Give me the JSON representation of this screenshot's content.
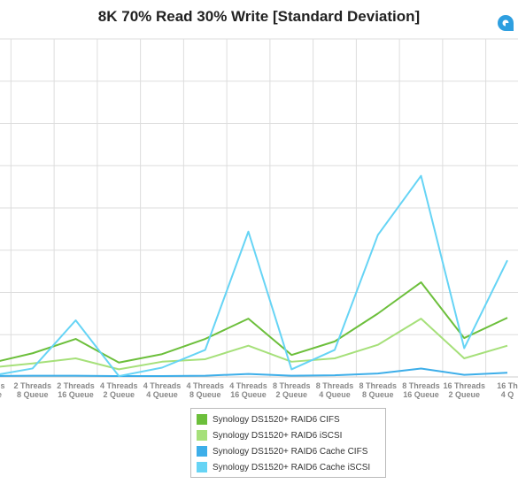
{
  "colors": {
    "cifs": "#6cbf3b",
    "iscsi": "#a6e07a",
    "cache_cifs": "#3daee9",
    "cache_iscsi": "#66d4f5",
    "grid": "#dddddd",
    "logo": "#2e9fe0"
  },
  "chart_data": {
    "type": "line",
    "title": "8K 70% Read 30% Write [Standard Deviation]",
    "xlabel": "",
    "ylabel": "",
    "ylim": [
      0,
      40
    ],
    "yticks": [
      0,
      5,
      10,
      15,
      20,
      25,
      30,
      35,
      40
    ],
    "y_tick_labels_visible": false,
    "grid": true,
    "legend_position": "bottom",
    "categories": [
      [
        "Threads",
        "Queue"
      ],
      [
        "2 Threads",
        "8 Queue"
      ],
      [
        "2 Threads",
        "16 Queue"
      ],
      [
        "4 Threads",
        "2 Queue"
      ],
      [
        "4 Threads",
        "4 Queue"
      ],
      [
        "4 Threads",
        "8 Queue"
      ],
      [
        "4 Threads",
        "16 Queue"
      ],
      [
        "8 Threads",
        "2 Queue"
      ],
      [
        "8 Threads",
        "4 Queue"
      ],
      [
        "8 Threads",
        "8 Queue"
      ],
      [
        "8 Threads",
        "16 Queue"
      ],
      [
        "16 Threads",
        "2 Queue"
      ],
      [
        "16 Th",
        "4 Q"
      ]
    ],
    "series": [
      {
        "name": "Synology DS1520+ RAID6 CIFS",
        "color_key": "cifs",
        "values": [
          1.6,
          2.8,
          4.5,
          1.7,
          2.7,
          4.5,
          6.9,
          2.6,
          4.2,
          7.5,
          11.2,
          4.6,
          7.0
        ]
      },
      {
        "name": "Synology DS1520+ RAID6 iSCSI",
        "color_key": "iscsi",
        "values": [
          1.1,
          1.6,
          2.2,
          0.9,
          1.8,
          2.1,
          3.7,
          1.8,
          2.2,
          3.8,
          6.9,
          2.2,
          3.7
        ]
      },
      {
        "name": "Synology DS1520+ RAID6 Cache CIFS",
        "color_key": "cache_cifs",
        "values": [
          0.1,
          0.15,
          0.15,
          0.1,
          0.1,
          0.15,
          0.35,
          0.15,
          0.2,
          0.4,
          1.0,
          0.25,
          0.5
        ]
      },
      {
        "name": "Synology DS1520+ RAID6 Cache iSCSI",
        "color_key": "cache_iscsi",
        "values": [
          0.1,
          1.0,
          6.7,
          0.1,
          1.1,
          3.2,
          17.2,
          0.9,
          3.2,
          16.8,
          23.8,
          3.4,
          13.8
        ]
      }
    ]
  }
}
